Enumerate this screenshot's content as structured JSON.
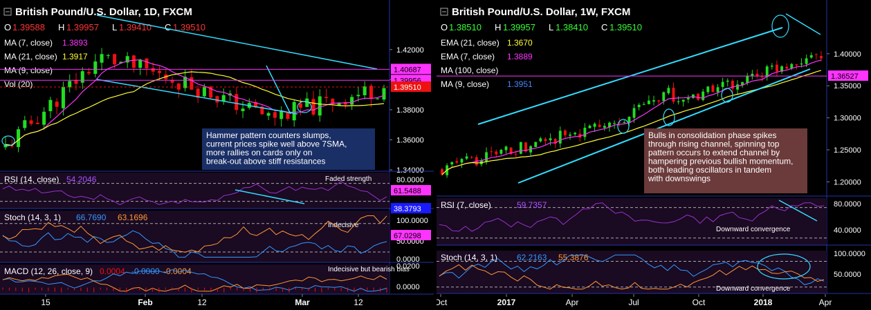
{
  "chart_data": [
    {
      "type": "candlestick",
      "title": "British Pound/U.S. Dollar, 1D, FXCM",
      "ohlc_label": {
        "o": "1.39588",
        "h": "1.39957",
        "l": "1.39410",
        "c": "1.39510"
      },
      "legend": [
        {
          "label": "MA (7, close)",
          "value": "1.3893",
          "color": "#ff33ff"
        },
        {
          "label": "MA (21, close)",
          "value": "1.3917",
          "color": "#ffff33"
        },
        {
          "label": "MA (9, close)",
          "value": "",
          "color": "#ffffff"
        },
        {
          "label": "Vol (20)",
          "value": "",
          "color": "#ffffff"
        }
      ],
      "x_ticks": [
        "15",
        "Feb",
        "12",
        "Mar",
        "12"
      ],
      "y_ticks": [
        "1.42000",
        "1.40000",
        "1.38000",
        "1.36000",
        "1.34000"
      ],
      "ylim": [
        1.34,
        1.43
      ],
      "price_labels": [
        {
          "value": "1.40687",
          "price": 1.40687,
          "bg": "#ff33ff",
          "fg": "#000000"
        },
        {
          "value": "1.39956",
          "price": 1.39956,
          "bg": "#ff33ff",
          "fg": "#000000"
        },
        {
          "value": "1.39510",
          "price": 1.3951,
          "bg": "#ee1111",
          "fg": "#ffffff"
        }
      ],
      "annotation": "Hammer pattern counters slumps, current prices spike well above 7SMA, more rallies on cards only on break-out above stiff resistances",
      "subpanels": [
        {
          "label": "RSI (14, close)",
          "value": "54.2046",
          "note": "Faded strength",
          "ticks": [
            "80.0000"
          ],
          "labels": [
            {
              "value": "61.5488",
              "bg": "#ff33ff",
              "fg": "#000000"
            },
            {
              "value": "38.3793",
              "bg": "#1a1aff",
              "fg": "#ffffff"
            }
          ]
        },
        {
          "label": "Stoch (14, 3, 1)",
          "values": [
            "66.7690",
            "63.1696"
          ],
          "note": "Indecisive",
          "ticks": [
            "100.0000",
            "50.0000",
            "0.0000"
          ],
          "labels": [
            {
              "value": "67.0298",
              "bg": "#ff33ff",
              "fg": "#000000"
            }
          ]
        },
        {
          "label": "MACD (12, 26, close, 9)",
          "values": [
            "0.0004",
            "-0.0000",
            "-0.0004"
          ],
          "note": "Indecisive but bearish bias",
          "ticks": [
            "0.0200",
            "0.0000"
          ]
        }
      ]
    },
    {
      "type": "candlestick",
      "title": "British Pound/U.S. Dollar, 1W, FXCM",
      "ohlc_label": {
        "o": "1.38510",
        "h": "1.39957",
        "l": "1.38410",
        "c": "1.39510"
      },
      "legend": [
        {
          "label": "EMA (21, close)",
          "value": "1.3670",
          "color": "#ffff33"
        },
        {
          "label": "EMA (7, close)",
          "value": "1.3889",
          "color": "#ff33ff"
        },
        {
          "label": "MA (100, close)",
          "value": "",
          "color": "#ffffff"
        },
        {
          "label": "MA (9, close)",
          "value": "1.3951",
          "color": "#4488ff"
        }
      ],
      "x_ticks": [
        "Oct",
        "2017",
        "Apr",
        "Jul",
        "Oct",
        "2018",
        "Apr"
      ],
      "y_ticks": [
        "1.40000",
        "1.35000",
        "1.30000",
        "1.25000",
        "1.20000"
      ],
      "ylim": [
        1.18,
        1.43
      ],
      "price_labels": [
        {
          "value": "1.36527",
          "price": 1.36527,
          "bg": "#ff33ff",
          "fg": "#000000"
        }
      ],
      "annotation": "Bulls in consolidation phase spikes through rising channel, spinning top pattern occurs to extend channel by hampering previous bullish momentum, both leading oscillators in tandem with downswings",
      "subpanels": [
        {
          "label": "RSI (7, close)",
          "value": "59.7357",
          "note": "Downward convergence",
          "ticks": [
            "80.0000",
            "40.0000"
          ]
        },
        {
          "label": "Stoch (14, 3, 1)",
          "values": [
            "62.2163",
            "55.3876"
          ],
          "note": "Downward convergence",
          "ticks": [
            "100.0000",
            "50.0000"
          ]
        }
      ]
    }
  ]
}
